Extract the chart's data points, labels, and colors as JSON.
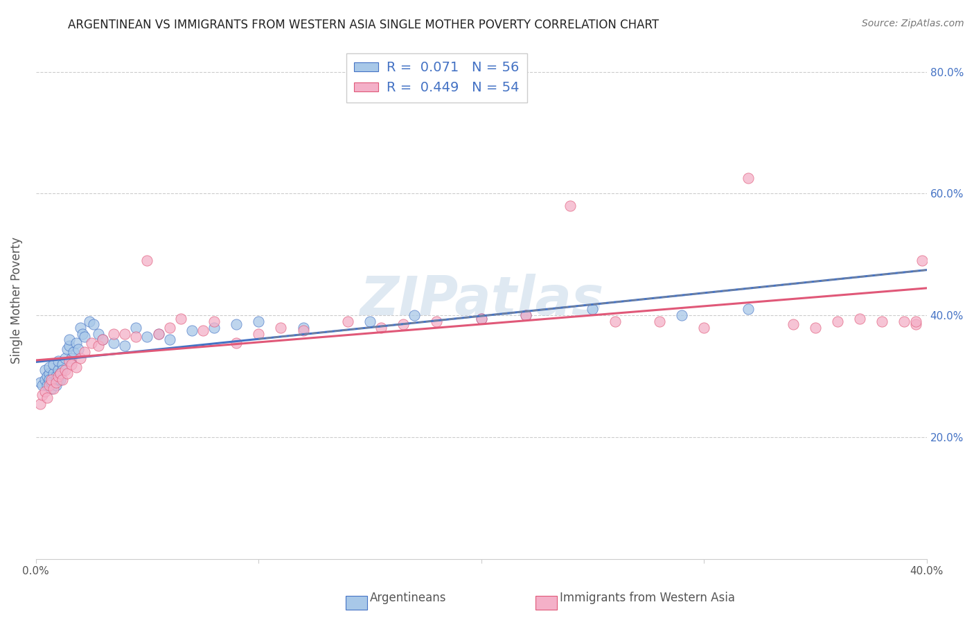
{
  "title": "ARGENTINEAN VS IMMIGRANTS FROM WESTERN ASIA SINGLE MOTHER POVERTY CORRELATION CHART",
  "source": "Source: ZipAtlas.com",
  "ylabel": "Single Mother Poverty",
  "xlim": [
    0.0,
    0.4
  ],
  "ylim": [
    0.0,
    0.85
  ],
  "yticks": [
    0.2,
    0.4,
    0.6,
    0.8
  ],
  "ytick_labels": [
    "20.0%",
    "40.0%",
    "60.0%",
    "80.0%"
  ],
  "xticks": [
    0.0,
    0.1,
    0.2,
    0.3,
    0.4
  ],
  "xtick_labels": [
    "0.0%",
    "",
    "",
    "",
    "40.0%"
  ],
  "legend_labels": [
    "Argentineans",
    "Immigrants from Western Asia"
  ],
  "R1": 0.071,
  "N1": 56,
  "R2": 0.449,
  "N2": 54,
  "color_argentinean": "#a8c8e8",
  "color_western_asia": "#f4b0c8",
  "line_color_argentinean": "#4472c4",
  "line_color_western_asia": "#e05878",
  "background_color": "#ffffff",
  "watermark": "ZIPatlas",
  "argentinean_x": [
    0.002,
    0.003,
    0.004,
    0.004,
    0.005,
    0.005,
    0.006,
    0.006,
    0.006,
    0.007,
    0.007,
    0.008,
    0.008,
    0.009,
    0.009,
    0.009,
    0.01,
    0.01,
    0.01,
    0.011,
    0.011,
    0.012,
    0.012,
    0.013,
    0.014,
    0.015,
    0.015,
    0.016,
    0.017,
    0.018,
    0.019,
    0.02,
    0.021,
    0.022,
    0.024,
    0.026,
    0.028,
    0.03,
    0.035,
    0.04,
    0.045,
    0.05,
    0.055,
    0.06,
    0.07,
    0.08,
    0.09,
    0.1,
    0.12,
    0.15,
    0.17,
    0.2,
    0.22,
    0.25,
    0.29,
    0.32
  ],
  "argentinean_y": [
    0.29,
    0.285,
    0.295,
    0.31,
    0.3,
    0.285,
    0.305,
    0.295,
    0.315,
    0.29,
    0.28,
    0.305,
    0.32,
    0.3,
    0.285,
    0.295,
    0.31,
    0.295,
    0.325,
    0.305,
    0.295,
    0.32,
    0.31,
    0.33,
    0.345,
    0.35,
    0.36,
    0.33,
    0.34,
    0.355,
    0.345,
    0.38,
    0.37,
    0.365,
    0.39,
    0.385,
    0.37,
    0.36,
    0.355,
    0.35,
    0.38,
    0.365,
    0.37,
    0.36,
    0.375,
    0.38,
    0.385,
    0.39,
    0.38,
    0.39,
    0.4,
    0.395,
    0.4,
    0.41,
    0.4,
    0.41
  ],
  "western_asia_x": [
    0.002,
    0.003,
    0.004,
    0.005,
    0.006,
    0.007,
    0.008,
    0.009,
    0.01,
    0.011,
    0.012,
    0.013,
    0.014,
    0.015,
    0.016,
    0.018,
    0.02,
    0.022,
    0.025,
    0.028,
    0.03,
    0.035,
    0.04,
    0.045,
    0.05,
    0.055,
    0.06,
    0.065,
    0.075,
    0.08,
    0.09,
    0.1,
    0.11,
    0.12,
    0.14,
    0.155,
    0.165,
    0.18,
    0.2,
    0.22,
    0.24,
    0.26,
    0.28,
    0.3,
    0.32,
    0.34,
    0.35,
    0.36,
    0.37,
    0.38,
    0.39,
    0.395,
    0.395,
    0.398
  ],
  "western_asia_y": [
    0.255,
    0.27,
    0.275,
    0.265,
    0.285,
    0.295,
    0.28,
    0.29,
    0.3,
    0.305,
    0.295,
    0.31,
    0.305,
    0.325,
    0.32,
    0.315,
    0.33,
    0.34,
    0.355,
    0.35,
    0.36,
    0.37,
    0.37,
    0.365,
    0.49,
    0.37,
    0.38,
    0.395,
    0.375,
    0.39,
    0.355,
    0.37,
    0.38,
    0.375,
    0.39,
    0.38,
    0.385,
    0.39,
    0.395,
    0.4,
    0.58,
    0.39,
    0.39,
    0.38,
    0.625,
    0.385,
    0.38,
    0.39,
    0.395,
    0.39,
    0.39,
    0.385,
    0.39,
    0.49
  ]
}
